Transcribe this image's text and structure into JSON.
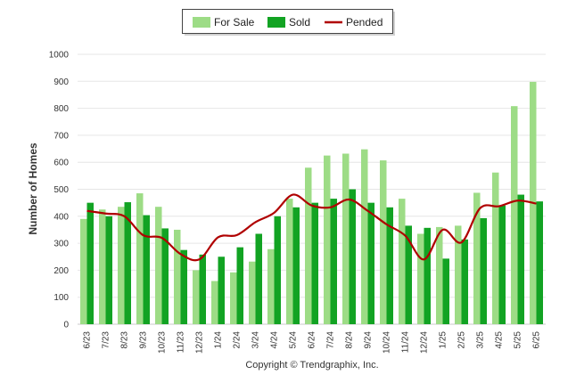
{
  "copyright": "Copyright © Trendgraphix, Inc.",
  "colors": {
    "for_sale": "#9ddc86",
    "sold": "#12a323",
    "pended": "#b00000",
    "grid": "#e6e6e6",
    "axis_text": "#333333"
  },
  "chart_data": {
    "type": "bar",
    "title": "",
    "xlabel": "",
    "ylabel": "Number of Homes",
    "ylim": [
      0,
      1000
    ],
    "yticks": [
      0,
      100,
      200,
      300,
      400,
      500,
      600,
      700,
      800,
      900,
      1000
    ],
    "grid": true,
    "legend_position": "top-center",
    "categories": [
      "6/23",
      "7/23",
      "8/23",
      "9/23",
      "10/23",
      "11/23",
      "12/23",
      "1/24",
      "2/24",
      "3/24",
      "4/24",
      "5/24",
      "6/24",
      "7/24",
      "8/24",
      "9/24",
      "10/24",
      "11/24",
      "12/24",
      "1/25",
      "2/25",
      "3/25",
      "4/25",
      "5/25",
      "6/25"
    ],
    "series": [
      {
        "name": "For Sale",
        "kind": "bar",
        "values": [
          390,
          425,
          435,
          485,
          435,
          350,
          200,
          160,
          192,
          232,
          278,
          465,
          580,
          625,
          632,
          648,
          607,
          465,
          335,
          360,
          365,
          487,
          562,
          808,
          898
        ]
      },
      {
        "name": "Sold",
        "kind": "bar",
        "values": [
          450,
          400,
          452,
          404,
          355,
          275,
          258,
          250,
          285,
          335,
          400,
          433,
          450,
          465,
          500,
          450,
          433,
          365,
          357,
          243,
          314,
          393,
          440,
          480,
          455
        ]
      },
      {
        "name": "Pended",
        "kind": "line",
        "values": [
          420,
          410,
          400,
          330,
          320,
          260,
          240,
          322,
          330,
          378,
          413,
          480,
          440,
          433,
          462,
          420,
          370,
          328,
          240,
          350,
          303,
          430,
          437,
          458,
          447
        ]
      }
    ]
  }
}
